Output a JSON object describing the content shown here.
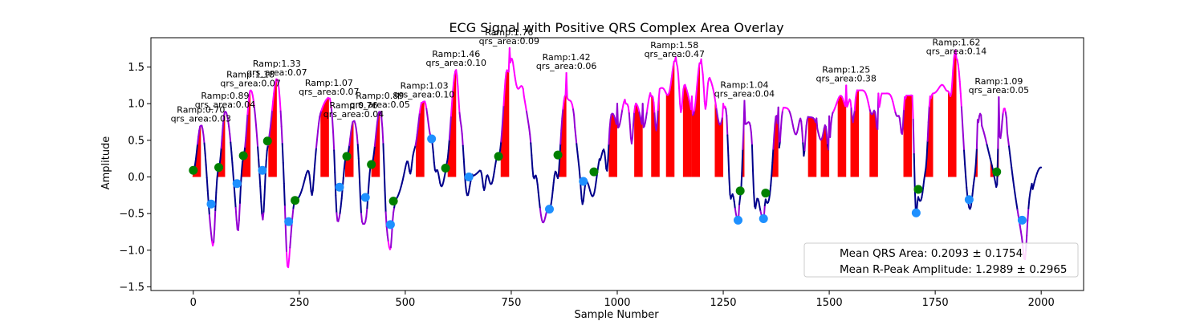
{
  "chart_data": {
    "type": "line",
    "title": "ECG Signal with Positive QRS Complex Area Overlay",
    "xlabel": "Sample Number",
    "ylabel": "Amplitude",
    "xlim": [
      -100,
      2100
    ],
    "ylim": [
      -1.55,
      1.9
    ],
    "xticks": [
      0,
      250,
      500,
      750,
      1000,
      1250,
      1500,
      1750,
      2000
    ],
    "yticks": [
      -1.5,
      -1.0,
      -0.5,
      0.0,
      0.5,
      1.0,
      1.5
    ],
    "grid": false,
    "legend_position": "bottom-right",
    "legend": [
      "Mean QRS Area: 0.2093 ± 0.1754",
      "Mean R-Peak Amplitude: 1.2989 ± 0.2965"
    ],
    "colors": {
      "signal_low": "#00008b",
      "signal_mid": "#9400d3",
      "signal_high": "#ff00ff",
      "qrs_fill": "#ff0000",
      "onset_marker": "#008000",
      "offset_marker": "#1e90ff"
    },
    "beats": [
      {
        "onset": [
          0,
          0.09
        ],
        "peak": [
          18,
          0.7
        ],
        "offset": [
          42,
          -0.37
        ],
        "label": [
          "Ramp:0.70",
          "qrs_area:0.03"
        ]
      },
      {
        "onset": [
          60,
          0.13
        ],
        "peak": [
          75,
          0.89
        ],
        "offset": [
          103,
          -0.09
        ],
        "label": [
          "Ramp:0.89",
          "qrs_area:0.04"
        ]
      },
      {
        "onset": [
          118,
          0.29
        ],
        "peak": [
          135,
          1.18
        ],
        "offset": [
          163,
          0.09
        ],
        "label": [
          "Ramp:1.18",
          "qrs_area:0.07"
        ]
      },
      {
        "onset": [
          175,
          0.49
        ],
        "peak": [
          197,
          1.33
        ],
        "offset": [
          225,
          -0.61
        ],
        "label": [
          "Ramp:1.33",
          "qrs_area:0.07"
        ]
      },
      {
        "onset": [
          240,
          -0.32
        ],
        "peak": [
          320,
          1.07
        ],
        "offset": [
          345,
          -0.14
        ],
        "label": [
          "Ramp:1.07",
          "qrs_area:0.07"
        ]
      },
      {
        "onset": [
          362,
          0.28
        ],
        "peak": [
          378,
          0.76
        ],
        "offset": [
          406,
          -0.28
        ],
        "label": [
          "Ramp:0.76",
          "qrs_area:0.04"
        ]
      },
      {
        "onset": [
          420,
          0.17
        ],
        "peak": [
          440,
          0.89
        ],
        "offset": [
          465,
          -0.65
        ],
        "label": [
          "Ramp:0.89",
          "qrs_area:0.05"
        ]
      },
      {
        "onset": [
          472,
          -0.33
        ],
        "peak": [
          545,
          1.03
        ],
        "offset": [
          562,
          0.52
        ],
        "label": [
          "Ramp:1.03",
          "qrs_area:0.10"
        ]
      },
      {
        "onset": [
          595,
          0.12
        ],
        "peak": [
          620,
          1.46
        ],
        "offset": [
          650,
          0.0
        ],
        "label": [
          "Ramp:1.46",
          "qrs_area:0.10"
        ]
      },
      {
        "onset": [
          720,
          0.28
        ],
        "peak": [
          745,
          1.76
        ],
        "offset": [
          840,
          -0.44
        ],
        "label": [
          "Ramp:1.76",
          "qrs_area:0.09"
        ]
      },
      {
        "onset": [
          860,
          0.3
        ],
        "peak": [
          880,
          1.42
        ],
        "offset": [
          920,
          -0.06
        ],
        "label": [
          "Ramp:1.42",
          "qrs_area:0.06"
        ]
      },
      {
        "onset": [
          945,
          0.07
        ],
        "peak": [
          1135,
          1.58
        ],
        "offset": null,
        "label": [
          "Ramp:1.58",
          "qrs_area:0.47"
        ]
      },
      {
        "onset": null,
        "peak": [
          1300,
          1.04
        ],
        "offset": [
          1285,
          -0.59
        ],
        "label": [
          "Ramp:1.04",
          "qrs_area:0.04"
        ]
      },
      {
        "onset": [
          1290,
          -0.19
        ],
        "peak": [
          1540,
          1.25
        ],
        "offset": [
          1345,
          -0.57
        ],
        "label": [
          "Ramp:1.25",
          "qrs_area:0.38"
        ]
      },
      {
        "onset": [
          1350,
          -0.22
        ],
        "peak": [
          1800,
          1.62
        ],
        "offset": [
          1705,
          -0.49
        ],
        "label": [
          "Ramp:1.62",
          "qrs_area:0.14"
        ]
      },
      {
        "onset": [
          1710,
          -0.17
        ],
        "peak": [
          1900,
          1.09
        ],
        "offset": [
          1830,
          -0.31
        ],
        "label": [
          "Ramp:1.09",
          "qrs_area:0.05"
        ]
      },
      {
        "onset": [
          1895,
          0.07
        ],
        "peak": [
          1915,
          1.0
        ],
        "offset": [
          1955,
          -0.59
        ],
        "label": null
      }
    ],
    "peaks_x": [
      18,
      75,
      135,
      197,
      320,
      378,
      440,
      545,
      620,
      745,
      880,
      1000,
      1060,
      1100,
      1135,
      1175,
      1195,
      1250,
      1300,
      1380,
      1470,
      1500,
      1540,
      1570,
      1615,
      1695,
      1745,
      1800,
      1850,
      1900
    ],
    "peaks_y": [
      0.7,
      0.89,
      1.18,
      1.33,
      1.07,
      0.76,
      0.89,
      1.03,
      1.46,
      1.76,
      1.42,
      1.0,
      1.0,
      1.2,
      1.58,
      1.1,
      1.55,
      1.0,
      1.04,
      0.95,
      0.8,
      0.83,
      1.25,
      1.18,
      1.14,
      1.11,
      1.14,
      1.62,
      0.78,
      1.09
    ]
  }
}
